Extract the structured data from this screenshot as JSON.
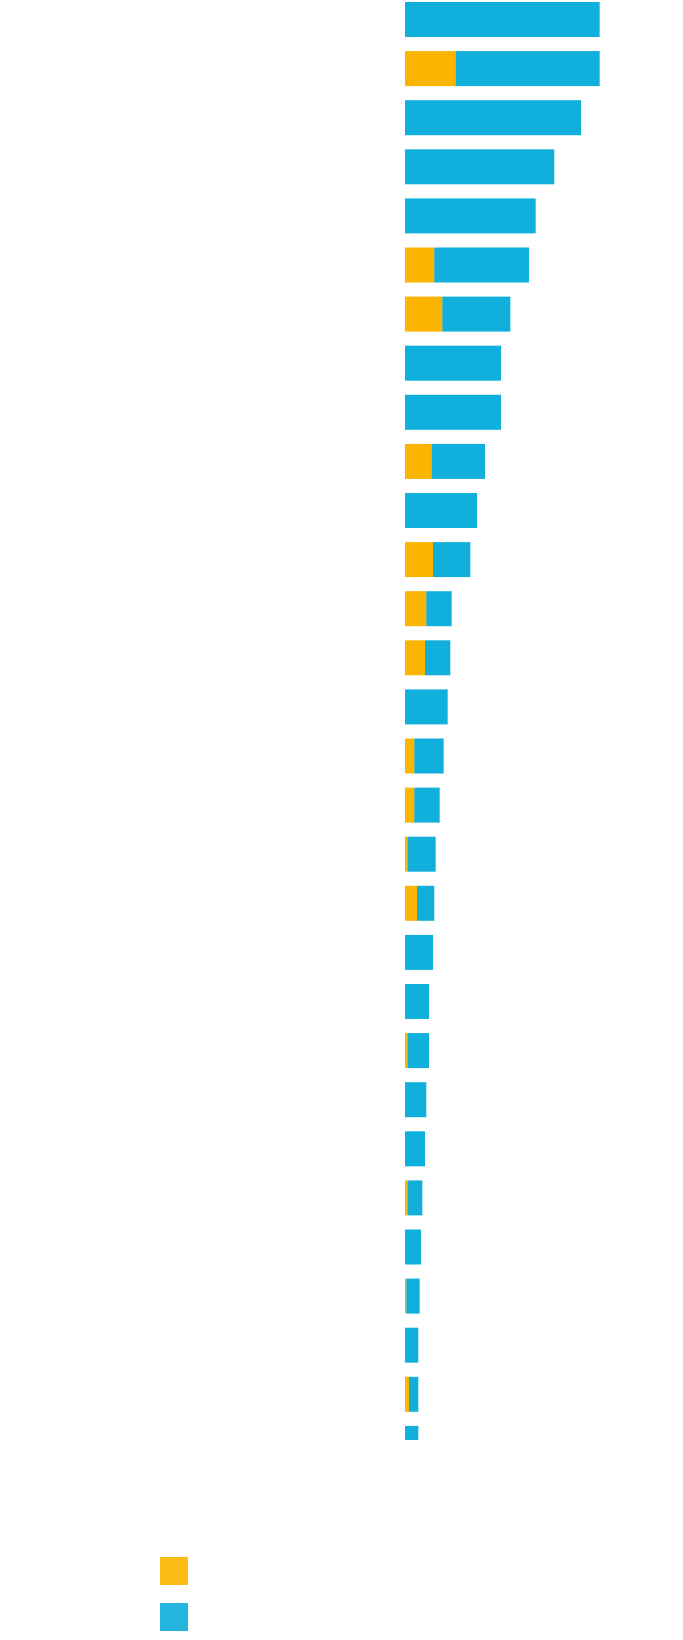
{
  "chart_data": {
    "type": "bar",
    "orientation": "horizontal",
    "stacked": true,
    "grid": false,
    "legend_position": "bottom-left",
    "colors": {
      "series_a": "#fbb400",
      "series_b": "#11b0dc",
      "legend_a": "#f9bd15",
      "legend_b": "#23b5de"
    },
    "series": [
      {
        "values": [
          0,
          19,
          0,
          0,
          0,
          11,
          14,
          0,
          0,
          10,
          0,
          10.5,
          8,
          7.5,
          0,
          3.5,
          3.5,
          1,
          4.5,
          0,
          0,
          1,
          0,
          0,
          1,
          0,
          0.5,
          0,
          1.5,
          0
        ]
      },
      {
        "values": [
          73,
          54,
          66,
          56,
          49,
          35.5,
          25.5,
          36,
          36,
          20,
          27,
          14,
          9.5,
          9.5,
          16,
          11,
          9.5,
          10.5,
          6.5,
          10.5,
          9,
          8,
          8,
          7.5,
          5.5,
          6,
          5,
          5,
          3.5,
          5
        ]
      }
    ],
    "xlim": [
      0,
      75
    ]
  }
}
